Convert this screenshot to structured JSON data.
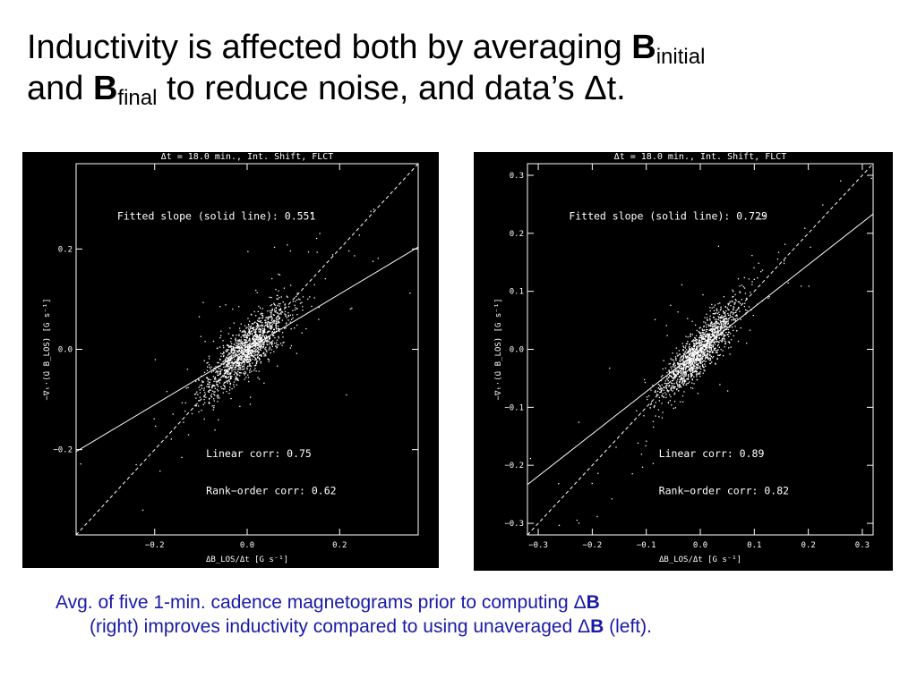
{
  "title": {
    "part1": "Inductivity is affected both by averaging ",
    "b1": "B",
    "sub1": "initial",
    "part2": "and ",
    "b2": "B",
    "sub2": "final",
    "part3": " to reduce noise, and data’s Δt."
  },
  "caption": {
    "line1_text": "Avg. of five 1-min. cadence magnetograms prior to computing Δ",
    "line1_bold": "B",
    "line2_text": "(right) improves inductivity compared to using unaveraged Δ",
    "line2_bold": "B",
    "line2_end": " (left)."
  },
  "chart_data": [
    {
      "type": "scatter",
      "title": "Δt = 18.0 min., Int. Shift, FLCT",
      "xlabel": "ΔB_LOS/Δt [G s⁻¹]",
      "ylabel": "−∇ₜ·(u⃗ B_LOS) [G s⁻¹]",
      "xlim": [
        -0.37,
        0.37
      ],
      "ylim": [
        -0.37,
        0.37
      ],
      "xticks": [
        -0.2,
        0.0,
        0.2
      ],
      "yticks": [
        -0.2,
        0.0,
        0.2
      ],
      "xtick_labels": [
        "−0.2",
        "0.0",
        "0.2"
      ],
      "ytick_labels": [
        "−0.2",
        "0.0",
        "0.2"
      ],
      "fit_slope": 0.551,
      "annotations": {
        "fit": "Fitted slope (solid line): 0.551",
        "linear": "Linear corr: 0.75",
        "rank": "Rank−order corr: 0.62"
      },
      "scatter_spread": 0.05,
      "n_points": 1500,
      "grid": false
    },
    {
      "type": "scatter",
      "title": "Δt = 18.0 min., Int. Shift, FLCT",
      "xlabel": "ΔB_LOS/Δt [G s⁻¹]",
      "ylabel": "−∇ₜ·(u⃗ B_LOS) [G s⁻¹]",
      "xlim": [
        -0.32,
        0.32
      ],
      "ylim": [
        -0.32,
        0.32
      ],
      "xticks": [
        -0.3,
        -0.2,
        -0.1,
        0.0,
        0.1,
        0.2,
        0.3
      ],
      "yticks": [
        -0.3,
        -0.2,
        -0.1,
        0.0,
        0.1,
        0.2,
        0.3
      ],
      "xtick_labels": [
        "−0.3",
        "−0.2",
        "−0.1",
        "0.0",
        "0.1",
        "0.2",
        "0.3"
      ],
      "ytick_labels": [
        "−0.3",
        "−0.2",
        "−0.1",
        "0.0",
        "0.1",
        "0.2",
        "0.3"
      ],
      "fit_slope": 0.729,
      "annotations": {
        "fit": "Fitted slope (solid line): 0.729",
        "linear": "Linear corr: 0.89",
        "rank": "Rank−order corr: 0.82"
      },
      "scatter_spread": 0.04,
      "n_points": 1500,
      "grid": false
    }
  ]
}
